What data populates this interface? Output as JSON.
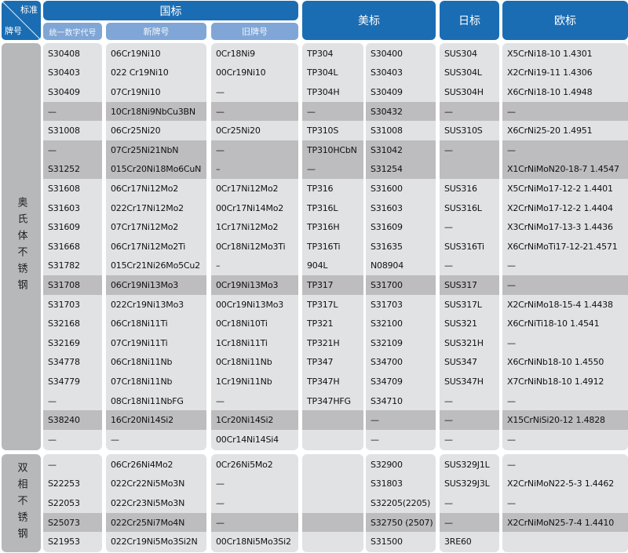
{
  "header": {
    "corner_top": "标准",
    "corner_bottom": "牌号",
    "gb": "国标",
    "us": "美标",
    "jis": "日标",
    "en": "欧标",
    "sub_unified": "统一数字代号",
    "sub_new": "新牌号",
    "sub_old": "旧牌号"
  },
  "colors": {
    "header": "#1b6db3",
    "subheader": "#7fa6d6",
    "row_light": "#e1e2e4",
    "row_dark": "#bdbdbf"
  },
  "sections": [
    {
      "label": "奥氏体不锈钢",
      "dark_rows": [
        3,
        5,
        6,
        12,
        19
      ],
      "rows": [
        [
          "S30408",
          "06Cr19Ni10",
          "0Cr18Ni9",
          "TP304",
          "S30400",
          "SUS304",
          "X5CrNi18-10 1.4301"
        ],
        [
          "S30403",
          "022 Cr19Ni10",
          "00Cr19Ni10",
          "TP304L",
          "S30403",
          "SUS304L",
          "X2CrNi19-11  1.4306"
        ],
        [
          "S30409",
          "07Cr19Ni10",
          "—",
          "TP304H",
          "S30409",
          "SUS304H",
          "X6CrNi18-10  1.4948"
        ],
        [
          "—",
          "10Cr18Ni9NbCu3BN",
          "—",
          "—",
          "S30432",
          "—",
          "—"
        ],
        [
          "S31008",
          "06Cr25Ni20",
          "0Cr25Ni20",
          "TP310S",
          "S31008",
          "SUS310S",
          "X6CrNi25-20 1.4951"
        ],
        [
          "—",
          "07Cr25Ni21NbN",
          "—",
          "TP310HCbN",
          "S31042",
          "—",
          "—"
        ],
        [
          "S31252",
          "015Cr20Ni18Mo6CuN",
          "–",
          "—",
          "S31254",
          "",
          "X1CrNiMoN20-18-7 1.4547"
        ],
        [
          "S31608",
          "06Cr17Ni12Mo2",
          "0Cr17Ni12Mo2",
          "TP316",
          "S31600",
          "SUS316",
          "X5CrNiMo17-12-2 1.4401"
        ],
        [
          "S31603",
          "022Cr17Ni12Mo2",
          "00Cr17Ni14Mo2",
          "TP316L",
          "S31603",
          "SUS316L",
          "X2CrNiMo17-12-2 1.4404"
        ],
        [
          "S31609",
          "07Cr17Ni12Mo2",
          "1Cr17Ni12Mo2",
          "TP316H",
          "S31609",
          "—",
          "X3CrNiMo17-13-3 1.4436"
        ],
        [
          "S31668",
          "06Cr17Ni12Mo2Ti",
          "0Cr18Ni12Mo3Ti",
          "TP316Ti",
          "S31635",
          "SUS316Ti",
          "X6CrNiMoTi17-12-21.4571"
        ],
        [
          "S31782",
          "015Cr21Ni26Mo5Cu2",
          "–",
          "904L",
          "N08904",
          "—",
          "—"
        ],
        [
          "S31708",
          "06Cr19Ni13Mo3",
          "0Cr19Ni13Mo3",
          "TP317",
          "S31700",
          "SUS317",
          "—"
        ],
        [
          "S31703",
          "022Cr19Ni13Mo3",
          "00Cr19Ni13Mo3",
          "TP317L",
          "S31703",
          "SUS317L",
          "X2CrNiMo18-15-4 1.4438"
        ],
        [
          "S32168",
          "06Cr18Ni11Ti",
          "0Cr18Ni10Ti",
          "TP321",
          "S32100",
          "SUS321",
          "X6CrNiTi18-10 1.4541"
        ],
        [
          "S32169",
          "07Cr19Ni11Ti",
          "1Cr18Ni11Ti",
          "TP321H",
          "S32109",
          "SUS321H",
          "—"
        ],
        [
          "S34778",
          "06Cr18Ni11Nb",
          "0Cr18Ni11Nb",
          "TP347",
          "S34700",
          "SUS347",
          "X6CrNiNb18-10 1.4550"
        ],
        [
          "S34779",
          "07Cr18Ni11Nb",
          "1Cr19Ni11Nb",
          "TP347H",
          "S34709",
          "SUS347H",
          "X7CrNiNb18-10 1.4912"
        ],
        [
          "—",
          "08Cr18Ni11NbFG",
          "—",
          "TP347HFG",
          "S34710",
          "—",
          "—"
        ],
        [
          "S38240",
          "16Cr20Ni14Si2",
          "1Cr20Ni14Si2",
          "",
          "—",
          "—",
          "X15CrNiSi20-12 1.4828"
        ],
        [
          "—",
          "—",
          "00Cr14Ni14Si4",
          "",
          "—",
          "—",
          "—"
        ]
      ]
    },
    {
      "label": "双相不锈钢",
      "dark_rows": [
        3
      ],
      "rows": [
        [
          "—",
          "06Cr26Ni4Mo2",
          "0Cr26Ni5Mo2",
          "",
          "S32900",
          "SUS329J1L",
          "—"
        ],
        [
          "S22253",
          "022Cr22Ni5Mo3N",
          "—",
          "",
          "S31803",
          "SUS329J3L",
          "X2CrNiMoN22-5-3 1.4462"
        ],
        [
          "S22053",
          "022Cr23Ni5Mo3N",
          "—",
          "",
          "S32205(2205)",
          "—",
          "—"
        ],
        [
          "S25073",
          "022Cr25Ni7Mo4N",
          "—",
          "",
          "S32750 (2507)",
          "—",
          "X2CrNiMoN25-7-4 1.4410"
        ],
        [
          "S21953",
          "022Cr19Ni5Mo3Si2N",
          "00Cr18Ni5Mo3Si2",
          "",
          "S31500",
          "3RE60",
          ""
        ]
      ]
    }
  ]
}
